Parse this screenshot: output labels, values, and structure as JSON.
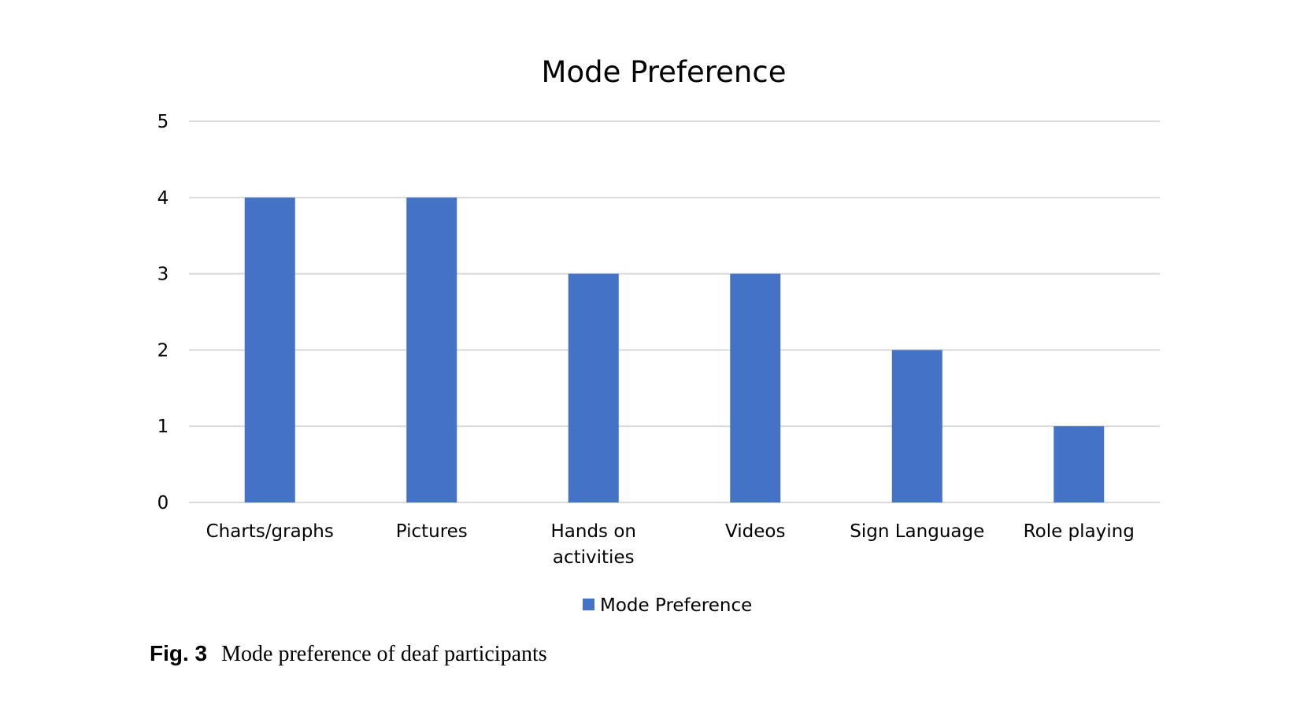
{
  "chart_data": {
    "type": "bar",
    "title": "Mode Preference",
    "categories": [
      "Charts/graphs",
      "Pictures",
      "Hands on activities",
      "Videos",
      "Sign Language",
      "Role playing"
    ],
    "category_lines": [
      [
        "Charts/graphs"
      ],
      [
        "Pictures"
      ],
      [
        "Hands on",
        "activities"
      ],
      [
        "Videos"
      ],
      [
        "Sign Language"
      ],
      [
        "Role playing"
      ]
    ],
    "series": [
      {
        "name": "Mode Preference",
        "values": [
          4,
          4,
          3,
          3,
          2,
          1
        ],
        "color": "#4472c4"
      }
    ],
    "y_ticks": [
      0,
      1,
      2,
      3,
      4,
      5
    ],
    "ylim": [
      0,
      5
    ],
    "xlabel": "",
    "ylabel": "",
    "grid": true,
    "legend_position": "bottom",
    "gridline_color": "#d9d9d9"
  },
  "caption": {
    "label": "Fig. 3",
    "text": "Mode preference of deaf participants"
  }
}
